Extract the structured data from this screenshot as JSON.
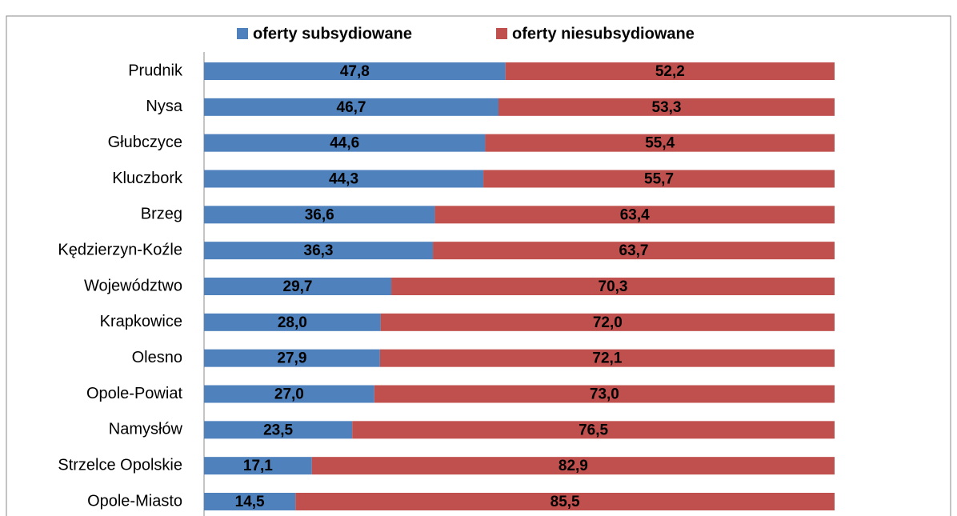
{
  "chart_data": {
    "type": "stacked_bar_horizontal",
    "categories": [
      "Prudnik",
      "Nysa",
      "Głubczyce",
      "Kluczbork",
      "Brzeg",
      "Kędzierzyn-Koźle",
      "Województwo",
      "Krapkowice",
      "Olesno",
      "Opole-Powiat",
      "Namysłów",
      "Strzelce Opolskie",
      "Opole-Miasto"
    ],
    "series": [
      {
        "name": "oferty subsydiowane",
        "color": "#4f81bd",
        "values": [
          47.8,
          46.7,
          44.6,
          44.3,
          36.6,
          36.3,
          29.7,
          28.0,
          27.9,
          27.0,
          23.5,
          17.1,
          14.5
        ],
        "value_labels": [
          "47,8",
          "46,7",
          "44,6",
          "44,3",
          "36,6",
          "36,3",
          "29,7",
          "28,0",
          "27,9",
          "27,0",
          "23,5",
          "17,1",
          "14,5"
        ]
      },
      {
        "name": "oferty niesubsydiowane",
        "color": "#c0504d",
        "values": [
          52.2,
          53.3,
          55.4,
          55.7,
          63.4,
          63.7,
          70.3,
          72.0,
          72.1,
          73.0,
          76.5,
          82.9,
          85.5
        ],
        "value_labels": [
          "52,2",
          "53,3",
          "55,4",
          "55,7",
          "63,4",
          "63,7",
          "70,3",
          "72,0",
          "72,1",
          "73,0",
          "76,5",
          "82,9",
          "85,5"
        ]
      }
    ],
    "xlim": [
      0,
      100
    ],
    "legend": "top"
  }
}
